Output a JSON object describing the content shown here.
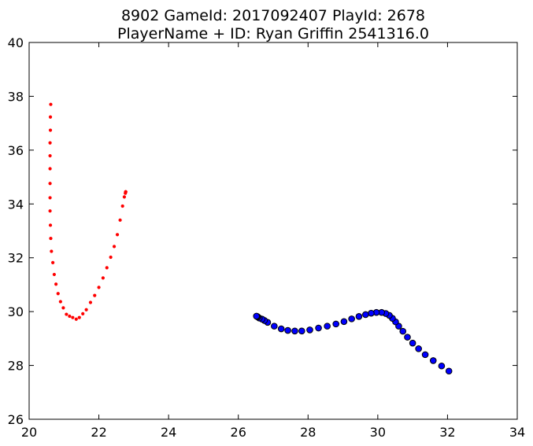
{
  "chart_data": {
    "type": "scatter",
    "title": "8902 GameId: 2017092407 PlayId: 2678",
    "subtitle": "PlayerName + ID: Ryan Griffin 2541316.0",
    "xlabel": "",
    "ylabel": "",
    "xlim": [
      20,
      34
    ],
    "ylim": [
      26,
      40
    ],
    "xticks": [
      "20",
      "22",
      "24",
      "26",
      "28",
      "30",
      "32",
      "34"
    ],
    "yticks": [
      "26",
      "28",
      "30",
      "32",
      "34",
      "36",
      "38",
      "40"
    ],
    "grid": false,
    "series": [
      {
        "color": "#ff0000",
        "marker": "small-dot",
        "x": [
          20.62,
          20.61,
          20.61,
          20.6,
          20.6,
          20.6,
          20.6,
          20.6,
          20.6,
          20.61,
          20.62,
          20.64,
          20.68,
          20.72,
          20.77,
          20.83,
          20.9,
          20.98,
          21.07,
          21.16,
          21.25,
          21.35,
          21.44,
          21.54,
          21.64,
          21.76,
          21.88,
          22.0,
          22.12,
          22.23,
          22.34,
          22.44,
          22.53,
          22.61,
          22.68,
          22.73,
          22.76,
          22.77,
          22.77,
          22.77
        ],
        "y": [
          37.7,
          37.23,
          36.74,
          36.27,
          35.79,
          35.31,
          34.76,
          34.23,
          33.74,
          33.21,
          32.72,
          32.24,
          31.82,
          31.38,
          31.02,
          30.67,
          30.37,
          30.14,
          29.9,
          29.83,
          29.78,
          29.72,
          29.78,
          29.92,
          30.07,
          30.34,
          30.6,
          30.9,
          31.25,
          31.63,
          32.02,
          32.42,
          32.86,
          33.4,
          33.92,
          34.26,
          34.4,
          34.45,
          34.45,
          34.45
        ]
      },
      {
        "color": "#0000ff",
        "marker": "circle",
        "x": [
          32.04,
          31.83,
          31.59,
          31.36,
          31.17,
          31.0,
          30.85,
          30.72,
          30.6,
          30.51,
          30.42,
          30.33,
          30.23,
          30.11,
          29.96,
          29.81,
          29.65,
          29.46,
          29.25,
          29.03,
          28.8,
          28.55,
          28.3,
          28.05,
          27.82,
          27.62,
          27.42,
          27.23,
          27.03,
          26.84,
          26.75,
          26.68,
          26.6,
          26.56,
          26.54,
          26.52
        ],
        "y": [
          27.79,
          27.98,
          28.18,
          28.4,
          28.62,
          28.83,
          29.05,
          29.27,
          29.46,
          29.62,
          29.75,
          29.86,
          29.93,
          29.97,
          29.97,
          29.94,
          29.89,
          29.82,
          29.73,
          29.63,
          29.54,
          29.46,
          29.39,
          29.32,
          29.28,
          29.28,
          29.3,
          29.36,
          29.46,
          29.6,
          29.67,
          29.72,
          29.76,
          29.8,
          29.82,
          29.83
        ]
      }
    ]
  }
}
